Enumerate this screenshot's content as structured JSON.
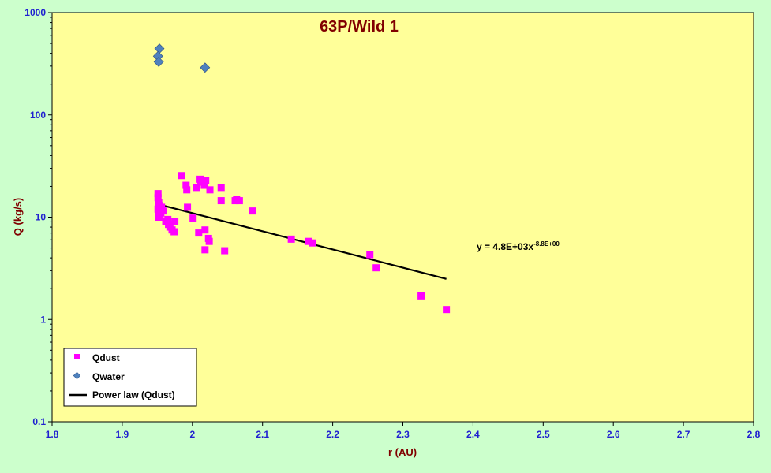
{
  "chart_data": {
    "type": "scatter",
    "title": "63P/Wild 1",
    "xlabel": "r (AU)",
    "ylabel": "Q (kg/s)",
    "xlim": [
      1.8,
      2.8
    ],
    "ylim": [
      0.1,
      1000
    ],
    "y_scale": "log",
    "x_ticks": [
      "1.8",
      "1.9",
      "2",
      "2.1",
      "2.2",
      "2.3",
      "2.4",
      "2.5",
      "2.6",
      "2.7",
      "2.8"
    ],
    "y_ticks": [
      "0.1",
      "1",
      "10",
      "100",
      "1000"
    ],
    "grid": false,
    "legend_position": "bottom-left",
    "colors": {
      "plot_bg": "#ffff99",
      "page_bg": "#ccffcc",
      "qdust": "#ff00ff",
      "qwater": "#4f81bd",
      "fit": "#000000",
      "tick_text": "#1f1fd0",
      "title_text": "#800000"
    },
    "series": [
      {
        "name": "Qdust",
        "marker": "square",
        "points": [
          [
            1.951,
            17
          ],
          [
            1.951,
            15.5
          ],
          [
            1.952,
            14
          ],
          [
            1.953,
            13
          ],
          [
            1.951,
            12
          ],
          [
            1.952,
            11
          ],
          [
            1.954,
            10.5
          ],
          [
            1.956,
            12.5
          ],
          [
            1.958,
            11.5
          ],
          [
            1.955,
            11
          ],
          [
            1.952,
            10
          ],
          [
            1.962,
            9
          ],
          [
            1.965,
            9.5
          ],
          [
            1.966,
            8.5
          ],
          [
            1.968,
            8
          ],
          [
            1.971,
            7.5
          ],
          [
            1.974,
            7.2
          ],
          [
            1.975,
            9
          ],
          [
            1.985,
            25.5
          ],
          [
            1.991,
            20.5
          ],
          [
            1.992,
            18.5
          ],
          [
            1.993,
            12.5
          ],
          [
            2.001,
            9.8
          ],
          [
            2.006,
            19.5
          ],
          [
            2.011,
            23.5
          ],
          [
            2.012,
            22
          ],
          [
            2.017,
            20.5
          ],
          [
            2.019,
            23
          ],
          [
            2.025,
            18.5
          ],
          [
            2.009,
            7
          ],
          [
            2.018,
            7.5
          ],
          [
            2.023,
            6.2
          ],
          [
            2.024,
            5.8
          ],
          [
            2.018,
            4.8
          ],
          [
            2.041,
            19.5
          ],
          [
            2.041,
            14.5
          ],
          [
            2.046,
            4.7
          ],
          [
            2.061,
            14.5
          ],
          [
            2.063,
            15
          ],
          [
            2.067,
            14.5
          ],
          [
            2.086,
            11.5
          ],
          [
            2.141,
            6.1
          ],
          [
            2.165,
            5.8
          ],
          [
            2.171,
            5.6
          ],
          [
            2.253,
            4.3
          ],
          [
            2.262,
            3.2
          ],
          [
            2.326,
            1.7
          ],
          [
            2.362,
            1.25
          ]
        ]
      },
      {
        "name": "Qwater",
        "marker": "diamond",
        "points": [
          [
            1.953,
            445
          ],
          [
            1.951,
            375
          ],
          [
            1.952,
            330
          ],
          [
            2.018,
            290
          ]
        ]
      },
      {
        "name": "Power law (Qdust)",
        "marker": "line",
        "equation": "y = 4.8E+03x",
        "equation_exponent": "-8.8E+00",
        "coefficient": 4800,
        "exponent": -8.8,
        "x_range": [
          1.95,
          2.362
        ]
      }
    ]
  }
}
